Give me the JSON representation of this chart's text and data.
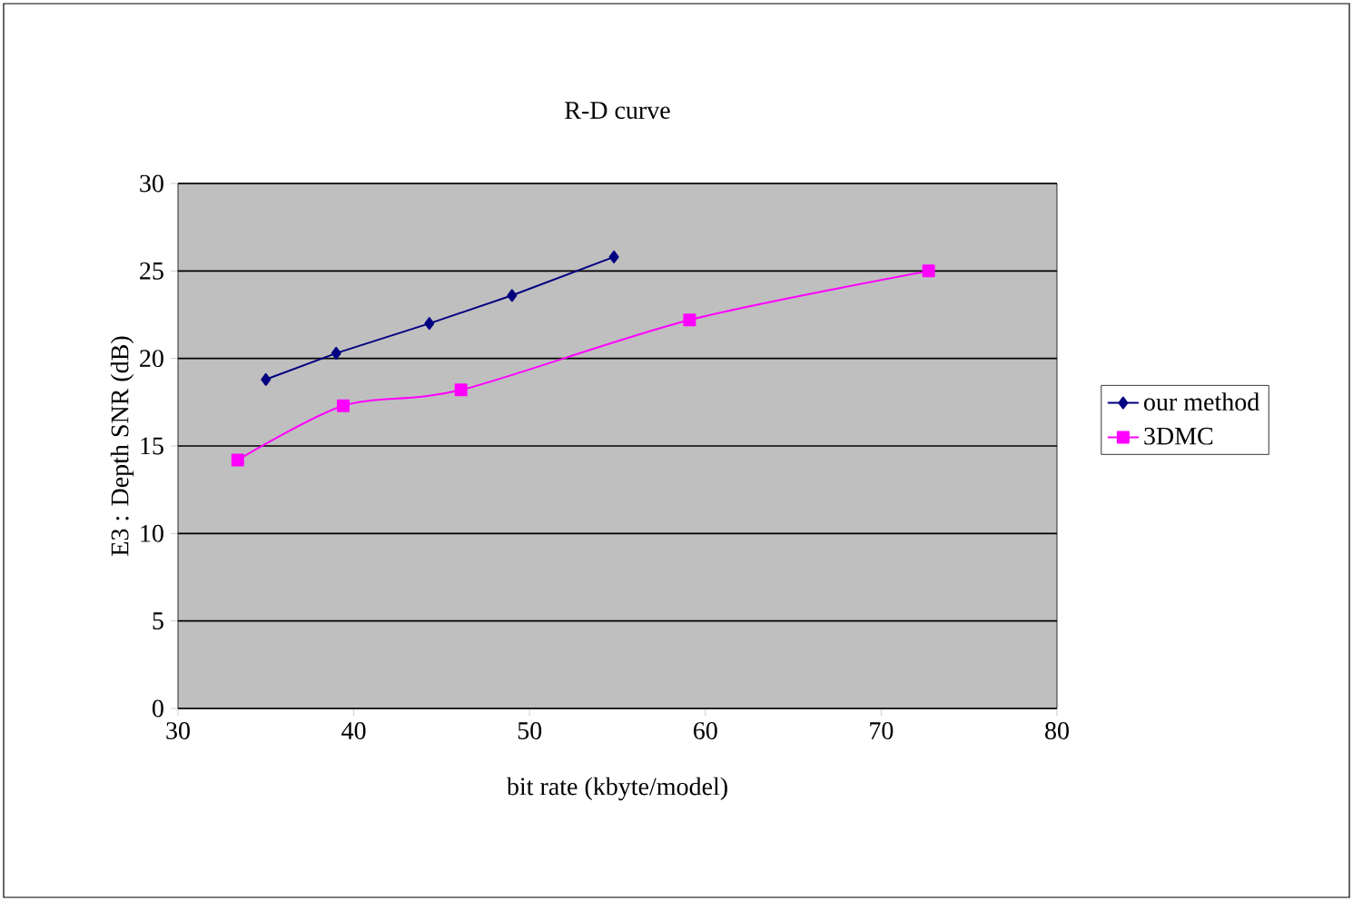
{
  "chart_data": {
    "type": "line",
    "title": "R-D curve",
    "xlabel": "bit rate (kbyte/model)",
    "ylabel": "E3 : Depth SNR (dB)",
    "xlim": [
      30,
      80
    ],
    "xticks": [
      30,
      40,
      50,
      60,
      70,
      80
    ],
    "ylim": [
      0,
      30
    ],
    "yticks": [
      0,
      5,
      10,
      15,
      20,
      25,
      30
    ],
    "grid": "y",
    "legend": "right",
    "series": [
      {
        "name": "our method",
        "color": "#000080",
        "marker": "diamond",
        "x": [
          35.0,
          39.0,
          44.3,
          49.0,
          54.8
        ],
        "values": [
          18.8,
          20.3,
          22.0,
          23.6,
          25.8
        ]
      },
      {
        "name": "3DMC",
        "color": "#ff00ff",
        "marker": "square",
        "x": [
          33.4,
          39.4,
          46.1,
          59.1,
          72.7
        ],
        "values": [
          14.2,
          17.3,
          18.2,
          22.2,
          25.0
        ]
      }
    ]
  }
}
